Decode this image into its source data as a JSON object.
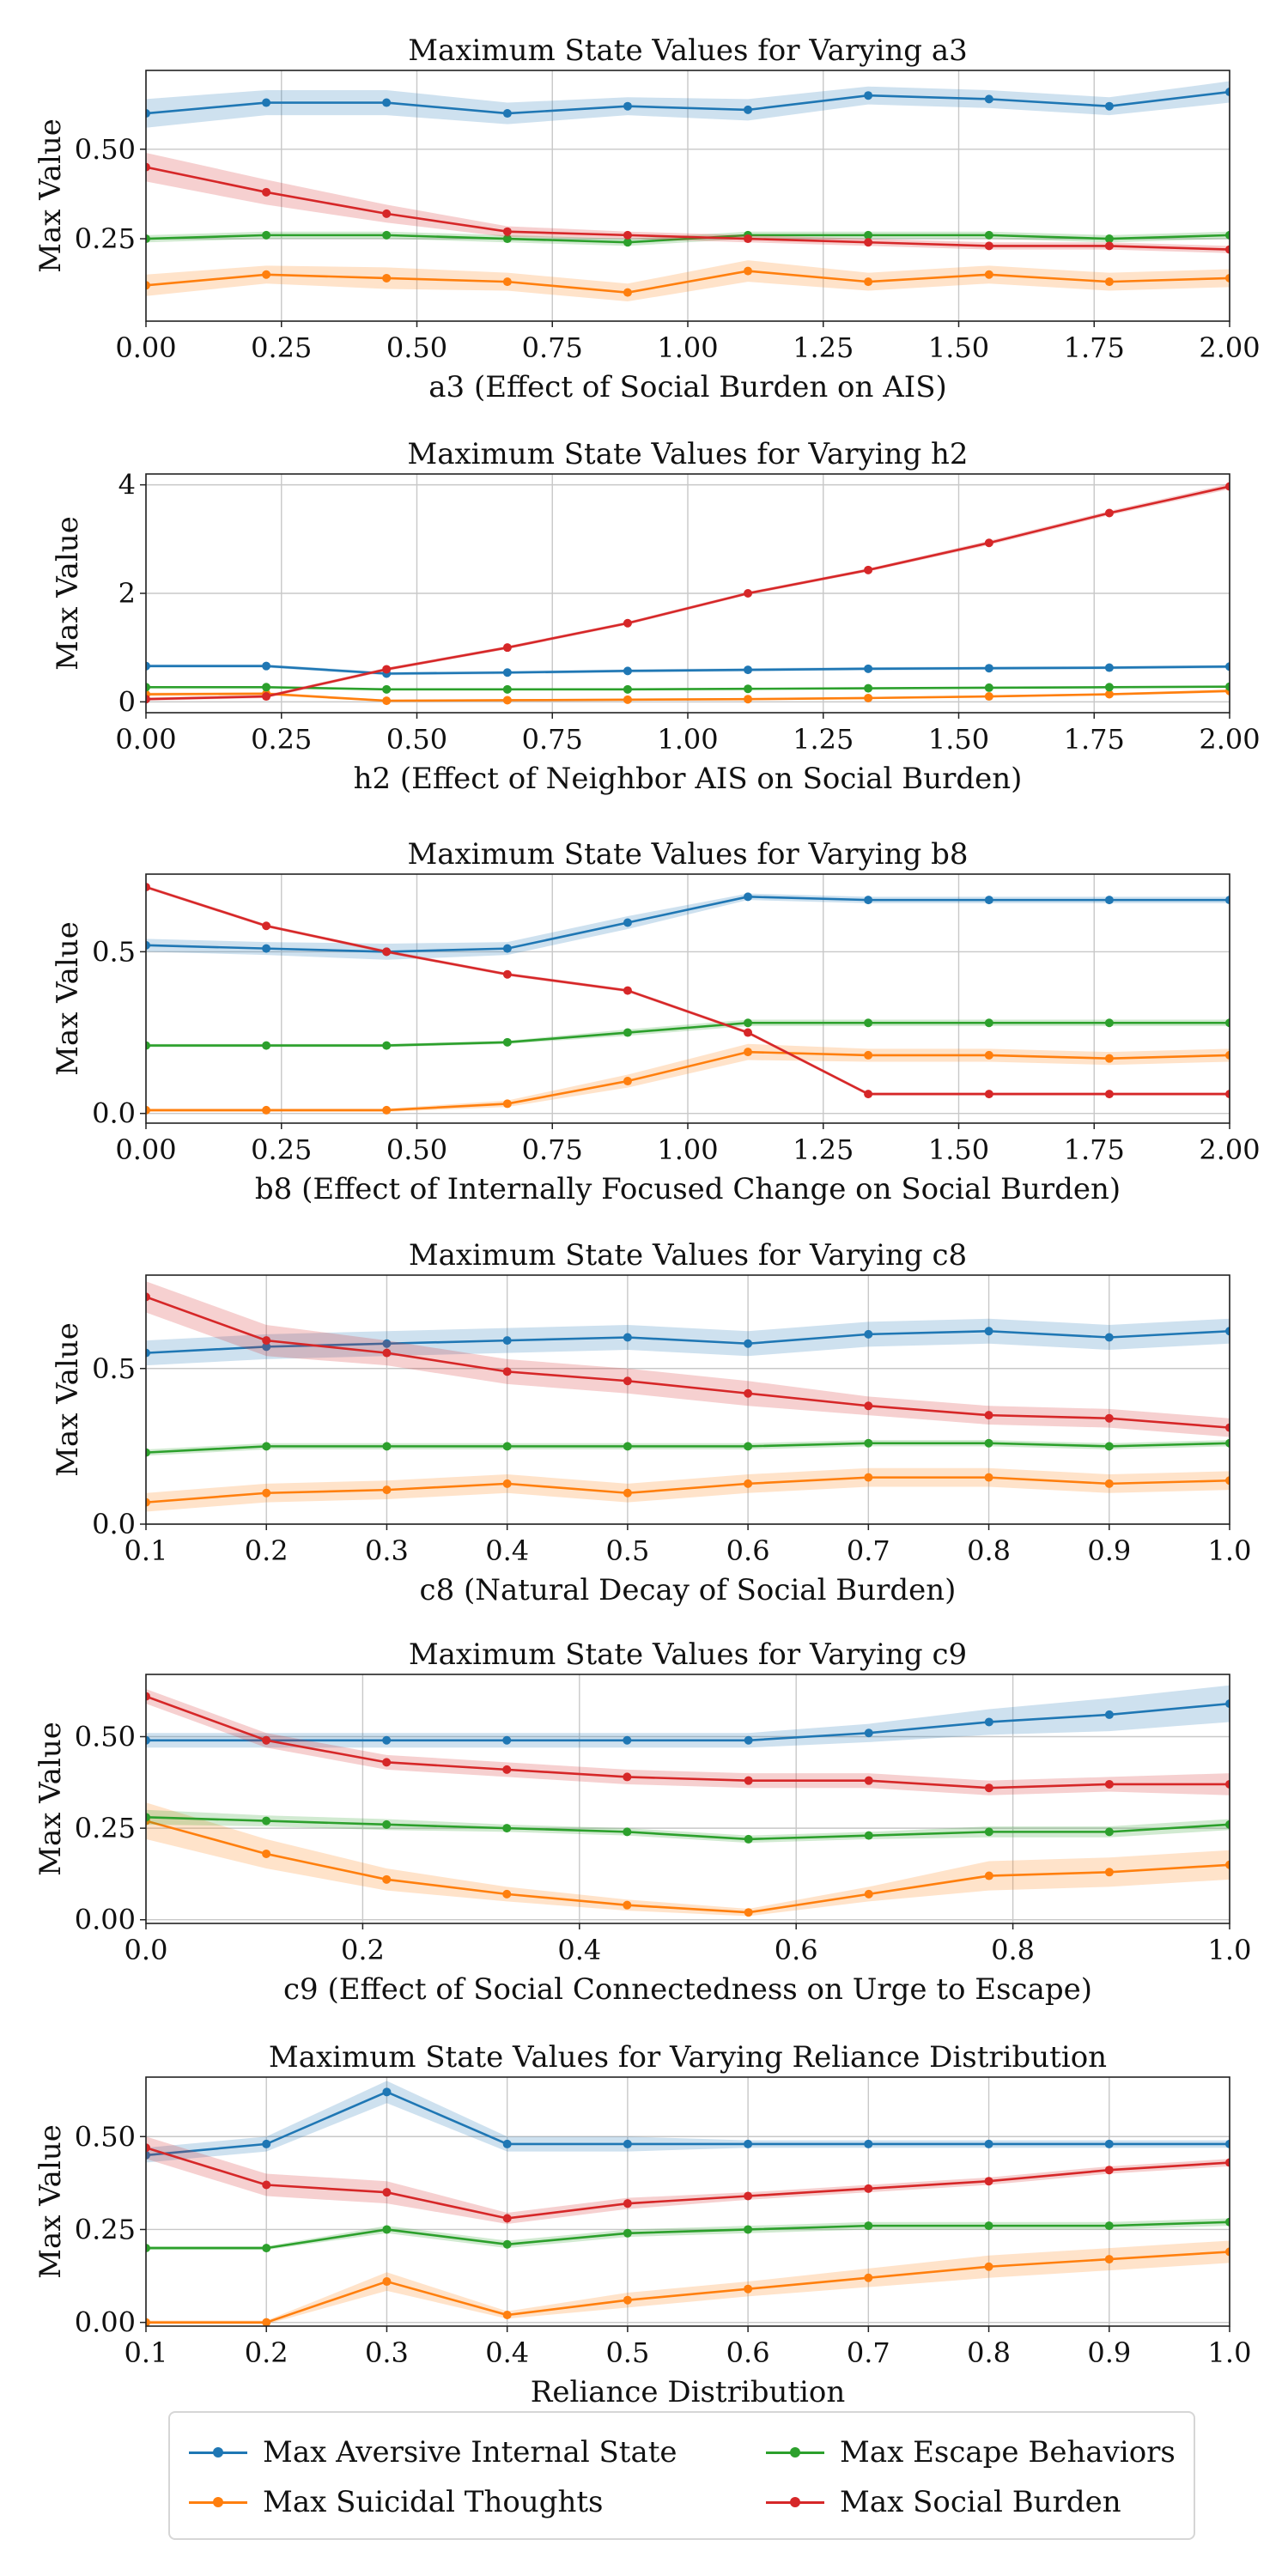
{
  "colors": {
    "aversive": "#1f77b4",
    "suicidal": "#ff7f0e",
    "escape": "#2ca02c",
    "social": "#d62728"
  },
  "legend": {
    "items": [
      {
        "key": "aversive",
        "label": "Max Aversive Internal State"
      },
      {
        "key": "suicidal",
        "label": "Max Suicidal Thoughts"
      },
      {
        "key": "escape",
        "label": "Max Escape Behaviors"
      },
      {
        "key": "social",
        "label": "Max Social Burden"
      }
    ]
  },
  "chart_data": [
    {
      "type": "line",
      "title": "Maximum State Values for Varying a3",
      "xlabel": "a3 (Effect of Social Burden on AIS)",
      "ylabel": "Max Value",
      "xlim": [
        0,
        2
      ],
      "ylim": [
        0.02,
        0.72
      ],
      "xticks": [
        0,
        0.25,
        0.5,
        0.75,
        1.0,
        1.25,
        1.5,
        1.75,
        2.0
      ],
      "xtick_labels": [
        "0.00",
        "0.25",
        "0.50",
        "0.75",
        "1.00",
        "1.25",
        "1.50",
        "1.75",
        "2.00"
      ],
      "yticks": [
        0.25,
        0.5
      ],
      "ytick_labels": [
        "0.25",
        "0.50"
      ],
      "x": [
        0,
        0.222,
        0.444,
        0.667,
        0.889,
        1.111,
        1.333,
        1.556,
        1.778,
        2.0
      ],
      "series": [
        {
          "name": "Max Aversive Internal State",
          "key": "aversive",
          "values": [
            0.6,
            0.63,
            0.63,
            0.6,
            0.62,
            0.61,
            0.65,
            0.64,
            0.62,
            0.66
          ],
          "band": [
            0.04,
            0.035,
            0.035,
            0.03,
            0.025,
            0.03,
            0.025,
            0.025,
            0.025,
            0.03
          ]
        },
        {
          "name": "Max Suicidal Thoughts",
          "key": "suicidal",
          "values": [
            0.12,
            0.15,
            0.14,
            0.13,
            0.1,
            0.16,
            0.13,
            0.15,
            0.13,
            0.14
          ],
          "band": [
            0.03,
            0.025,
            0.03,
            0.025,
            0.025,
            0.03,
            0.025,
            0.025,
            0.025,
            0.025
          ]
        },
        {
          "name": "Max Escape Behaviors",
          "key": "escape",
          "values": [
            0.25,
            0.26,
            0.26,
            0.25,
            0.24,
            0.26,
            0.26,
            0.26,
            0.25,
            0.26
          ],
          "band": [
            0.01,
            0.01,
            0.01,
            0.01,
            0.01,
            0.01,
            0.01,
            0.01,
            0.01,
            0.01
          ]
        },
        {
          "name": "Max Social Burden",
          "key": "social",
          "values": [
            0.45,
            0.38,
            0.32,
            0.27,
            0.26,
            0.25,
            0.24,
            0.23,
            0.23,
            0.22
          ],
          "band": [
            0.04,
            0.035,
            0.025,
            0.015,
            0.01,
            0.01,
            0.01,
            0.01,
            0.01,
            0.01
          ]
        }
      ],
      "grid": true
    },
    {
      "type": "line",
      "title": "Maximum State Values for Varying h2",
      "xlabel": "h2 (Effect of Neighbor AIS on Social Burden)",
      "ylabel": "Max Value",
      "xlim": [
        0,
        2
      ],
      "ylim": [
        -0.2,
        4.2
      ],
      "xticks": [
        0,
        0.25,
        0.5,
        0.75,
        1.0,
        1.25,
        1.5,
        1.75,
        2.0
      ],
      "xtick_labels": [
        "0.00",
        "0.25",
        "0.50",
        "0.75",
        "1.00",
        "1.25",
        "1.50",
        "1.75",
        "2.00"
      ],
      "yticks": [
        0,
        2,
        4
      ],
      "ytick_labels": [
        "0",
        "2",
        "4"
      ],
      "x": [
        0,
        0.222,
        0.444,
        0.667,
        0.889,
        1.111,
        1.333,
        1.556,
        1.778,
        2.0
      ],
      "series": [
        {
          "name": "Max Aversive Internal State",
          "key": "aversive",
          "values": [
            0.66,
            0.66,
            0.52,
            0.54,
            0.57,
            0.59,
            0.61,
            0.62,
            0.63,
            0.65
          ],
          "band": [
            0.03,
            0.03,
            0.03,
            0.03,
            0.03,
            0.03,
            0.03,
            0.03,
            0.03,
            0.03
          ]
        },
        {
          "name": "Max Suicidal Thoughts",
          "key": "suicidal",
          "values": [
            0.14,
            0.15,
            0.02,
            0.03,
            0.04,
            0.05,
            0.07,
            0.1,
            0.14,
            0.2
          ],
          "band": [
            0.03,
            0.03,
            0.02,
            0.02,
            0.02,
            0.02,
            0.02,
            0.02,
            0.02,
            0.03
          ]
        },
        {
          "name": "Max Escape Behaviors",
          "key": "escape",
          "values": [
            0.27,
            0.27,
            0.23,
            0.23,
            0.23,
            0.24,
            0.25,
            0.26,
            0.27,
            0.28
          ],
          "band": [
            0.01,
            0.01,
            0.01,
            0.01,
            0.01,
            0.01,
            0.01,
            0.01,
            0.01,
            0.01
          ]
        },
        {
          "name": "Max Social Burden",
          "key": "social",
          "values": [
            0.05,
            0.1,
            0.6,
            1.0,
            1.45,
            2.0,
            2.43,
            2.93,
            3.48,
            3.97
          ],
          "band": [
            0.03,
            0.03,
            0.03,
            0.03,
            0.03,
            0.03,
            0.03,
            0.04,
            0.04,
            0.05
          ]
        }
      ],
      "grid": true
    },
    {
      "type": "line",
      "title": "Maximum State Values for Varying b8",
      "xlabel": "b8 (Effect of Internally Focused Change on Social Burden)",
      "ylabel": "Max Value",
      "xlim": [
        0,
        2
      ],
      "ylim": [
        -0.03,
        0.74
      ],
      "xticks": [
        0,
        0.25,
        0.5,
        0.75,
        1.0,
        1.25,
        1.5,
        1.75,
        2.0
      ],
      "xtick_labels": [
        "0.00",
        "0.25",
        "0.50",
        "0.75",
        "1.00",
        "1.25",
        "1.50",
        "1.75",
        "2.00"
      ],
      "yticks": [
        0,
        0.5
      ],
      "ytick_labels": [
        "0.0",
        "0.5"
      ],
      "x": [
        0,
        0.222,
        0.444,
        0.667,
        0.889,
        1.111,
        1.333,
        1.556,
        1.778,
        2.0
      ],
      "series": [
        {
          "name": "Max Aversive Internal State",
          "key": "aversive",
          "values": [
            0.52,
            0.51,
            0.5,
            0.51,
            0.59,
            0.67,
            0.66,
            0.66,
            0.66,
            0.66
          ],
          "band": [
            0.02,
            0.02,
            0.025,
            0.02,
            0.02,
            0.01,
            0.01,
            0.01,
            0.01,
            0.01
          ]
        },
        {
          "name": "Max Suicidal Thoughts",
          "key": "suicidal",
          "values": [
            0.01,
            0.01,
            0.01,
            0.03,
            0.1,
            0.19,
            0.18,
            0.18,
            0.17,
            0.18
          ],
          "band": [
            0.005,
            0.005,
            0.005,
            0.01,
            0.02,
            0.025,
            0.02,
            0.02,
            0.02,
            0.02
          ]
        },
        {
          "name": "Max Escape Behaviors",
          "key": "escape",
          "values": [
            0.21,
            0.21,
            0.21,
            0.22,
            0.25,
            0.28,
            0.28,
            0.28,
            0.28,
            0.28
          ],
          "band": [
            0.005,
            0.005,
            0.005,
            0.005,
            0.01,
            0.01,
            0.01,
            0.01,
            0.01,
            0.01
          ]
        },
        {
          "name": "Max Social Burden",
          "key": "social",
          "values": [
            0.7,
            0.58,
            0.5,
            0.43,
            0.38,
            0.25,
            0.06,
            0.06,
            0.06,
            0.06
          ],
          "band": [
            0.005,
            0.005,
            0.005,
            0.005,
            0.005,
            0.005,
            0.005,
            0.005,
            0.005,
            0.005
          ]
        }
      ],
      "grid": true
    },
    {
      "type": "line",
      "title": "Maximum State Values for Varying c8",
      "xlabel": "c8 (Natural Decay of Social Burden)",
      "ylabel": "Max Value",
      "xlim": [
        0.1,
        1.0
      ],
      "ylim": [
        0,
        0.8
      ],
      "xticks": [
        0.1,
        0.2,
        0.3,
        0.4,
        0.5,
        0.6,
        0.7,
        0.8,
        0.9,
        1.0
      ],
      "xtick_labels": [
        "0.1",
        "0.2",
        "0.3",
        "0.4",
        "0.5",
        "0.6",
        "0.7",
        "0.8",
        "0.9",
        "1.0"
      ],
      "yticks": [
        0,
        0.5
      ],
      "ytick_labels": [
        "0.0",
        "0.5"
      ],
      "x": [
        0.1,
        0.2,
        0.3,
        0.4,
        0.5,
        0.6,
        0.7,
        0.8,
        0.9,
        1.0
      ],
      "series": [
        {
          "name": "Max Aversive Internal State",
          "key": "aversive",
          "values": [
            0.55,
            0.57,
            0.58,
            0.59,
            0.6,
            0.58,
            0.61,
            0.62,
            0.6,
            0.62
          ],
          "band": [
            0.04,
            0.04,
            0.04,
            0.04,
            0.04,
            0.04,
            0.04,
            0.04,
            0.04,
            0.04
          ]
        },
        {
          "name": "Max Suicidal Thoughts",
          "key": "suicidal",
          "values": [
            0.07,
            0.1,
            0.11,
            0.13,
            0.1,
            0.13,
            0.15,
            0.15,
            0.13,
            0.14
          ],
          "band": [
            0.03,
            0.03,
            0.03,
            0.03,
            0.03,
            0.03,
            0.03,
            0.03,
            0.03,
            0.03
          ]
        },
        {
          "name": "Max Escape Behaviors",
          "key": "escape",
          "values": [
            0.23,
            0.25,
            0.25,
            0.25,
            0.25,
            0.25,
            0.26,
            0.26,
            0.25,
            0.26
          ],
          "band": [
            0.01,
            0.01,
            0.01,
            0.01,
            0.01,
            0.01,
            0.01,
            0.01,
            0.01,
            0.01
          ]
        },
        {
          "name": "Max Social Burden",
          "key": "social",
          "values": [
            0.73,
            0.59,
            0.55,
            0.49,
            0.46,
            0.42,
            0.38,
            0.35,
            0.34,
            0.31
          ],
          "band": [
            0.05,
            0.05,
            0.04,
            0.04,
            0.04,
            0.04,
            0.03,
            0.03,
            0.03,
            0.03
          ]
        }
      ],
      "grid": true
    },
    {
      "type": "line",
      "title": "Maximum State Values for Varying c9",
      "xlabel": "c9 (Effect of Social Connectedness on Urge to Escape)",
      "ylabel": "Max Value",
      "xlim": [
        0,
        1.0
      ],
      "ylim": [
        -0.01,
        0.67
      ],
      "xticks": [
        0,
        0.2,
        0.4,
        0.6,
        0.8,
        1.0
      ],
      "xtick_labels": [
        "0.0",
        "0.2",
        "0.4",
        "0.6",
        "0.8",
        "1.0"
      ],
      "yticks": [
        0,
        0.25,
        0.5
      ],
      "ytick_labels": [
        "0.00",
        "0.25",
        "0.50"
      ],
      "x": [
        0,
        0.111,
        0.222,
        0.333,
        0.444,
        0.556,
        0.667,
        0.778,
        0.889,
        1.0
      ],
      "series": [
        {
          "name": "Max Aversive Internal State",
          "key": "aversive",
          "values": [
            0.49,
            0.49,
            0.49,
            0.49,
            0.49,
            0.49,
            0.51,
            0.54,
            0.56,
            0.59
          ],
          "band": [
            0.02,
            0.02,
            0.02,
            0.02,
            0.02,
            0.02,
            0.025,
            0.035,
            0.045,
            0.05
          ]
        },
        {
          "name": "Max Suicidal Thoughts",
          "key": "suicidal",
          "values": [
            0.27,
            0.18,
            0.11,
            0.07,
            0.04,
            0.02,
            0.07,
            0.12,
            0.13,
            0.15
          ],
          "band": [
            0.05,
            0.04,
            0.03,
            0.02,
            0.015,
            0.01,
            0.02,
            0.04,
            0.04,
            0.04
          ]
        },
        {
          "name": "Max Escape Behaviors",
          "key": "escape",
          "values": [
            0.28,
            0.27,
            0.26,
            0.25,
            0.24,
            0.22,
            0.23,
            0.24,
            0.24,
            0.26
          ],
          "band": [
            0.02,
            0.015,
            0.015,
            0.01,
            0.01,
            0.01,
            0.01,
            0.015,
            0.015,
            0.015
          ]
        },
        {
          "name": "Max Social Burden",
          "key": "social",
          "values": [
            0.61,
            0.49,
            0.43,
            0.41,
            0.39,
            0.38,
            0.38,
            0.36,
            0.37,
            0.37
          ],
          "band": [
            0.02,
            0.02,
            0.02,
            0.02,
            0.02,
            0.02,
            0.02,
            0.02,
            0.02,
            0.03
          ]
        }
      ],
      "grid": true
    },
    {
      "type": "line",
      "title": "Maximum State Values for Varying Reliance Distribution",
      "xlabel": "Reliance Distribution",
      "ylabel": "Max Value",
      "xlim": [
        0.1,
        1.0
      ],
      "ylim": [
        -0.01,
        0.66
      ],
      "xticks": [
        0.1,
        0.2,
        0.3,
        0.4,
        0.5,
        0.6,
        0.7,
        0.8,
        0.9,
        1.0
      ],
      "xtick_labels": [
        "0.1",
        "0.2",
        "0.3",
        "0.4",
        "0.5",
        "0.6",
        "0.7",
        "0.8",
        "0.9",
        "1.0"
      ],
      "yticks": [
        0,
        0.25,
        0.5
      ],
      "ytick_labels": [
        "0.00",
        "0.25",
        "0.50"
      ],
      "x": [
        0.1,
        0.2,
        0.3,
        0.4,
        0.5,
        0.6,
        0.7,
        0.8,
        0.9,
        1.0
      ],
      "series": [
        {
          "name": "Max Aversive Internal State",
          "key": "aversive",
          "values": [
            0.45,
            0.48,
            0.62,
            0.48,
            0.48,
            0.48,
            0.48,
            0.48,
            0.48,
            0.48
          ],
          "band": [
            0.02,
            0.02,
            0.03,
            0.02,
            0.02,
            0.01,
            0.01,
            0.01,
            0.01,
            0.01
          ]
        },
        {
          "name": "Max Suicidal Thoughts",
          "key": "suicidal",
          "values": [
            0.0,
            0.0,
            0.11,
            0.02,
            0.06,
            0.09,
            0.12,
            0.15,
            0.17,
            0.19
          ],
          "band": [
            0.005,
            0.005,
            0.025,
            0.01,
            0.02,
            0.02,
            0.025,
            0.03,
            0.03,
            0.03
          ]
        },
        {
          "name": "Max Escape Behaviors",
          "key": "escape",
          "values": [
            0.2,
            0.2,
            0.25,
            0.21,
            0.24,
            0.25,
            0.26,
            0.26,
            0.26,
            0.27
          ],
          "band": [
            0.005,
            0.005,
            0.01,
            0.01,
            0.01,
            0.01,
            0.01,
            0.01,
            0.01,
            0.01
          ]
        },
        {
          "name": "Max Social Burden",
          "key": "social",
          "values": [
            0.47,
            0.37,
            0.35,
            0.28,
            0.32,
            0.34,
            0.36,
            0.38,
            0.41,
            0.43
          ],
          "band": [
            0.03,
            0.03,
            0.03,
            0.015,
            0.015,
            0.01,
            0.01,
            0.01,
            0.01,
            0.01
          ]
        }
      ],
      "grid": true
    }
  ]
}
